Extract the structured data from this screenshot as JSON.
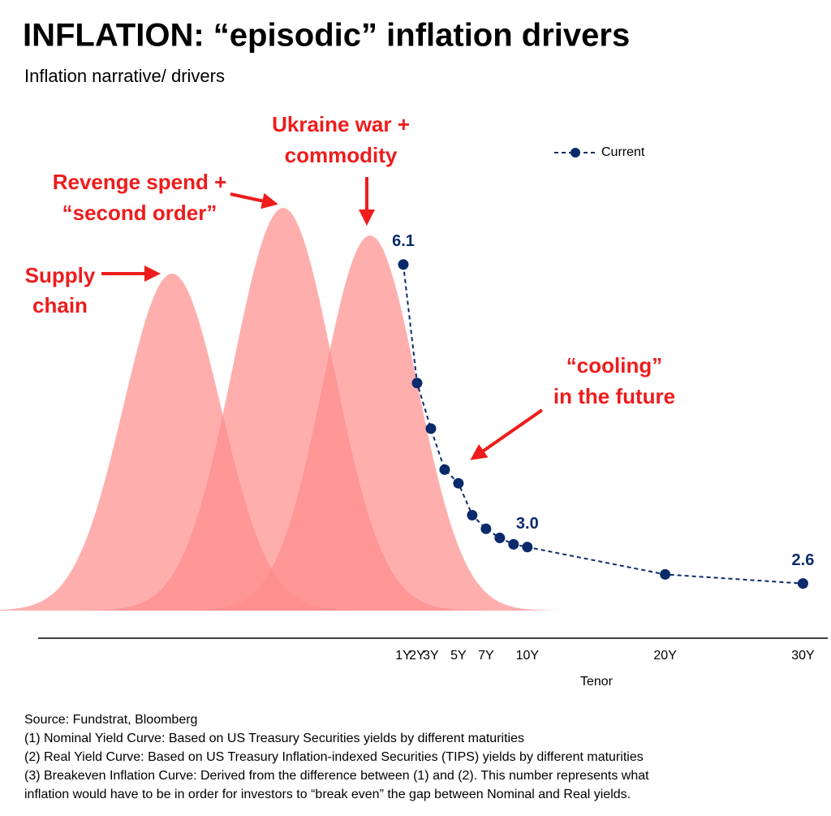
{
  "chart_data": {
    "type": "line",
    "title": "INFLATION: “episodic” inflation drivers",
    "subtitle": "Inflation narrative/ drivers",
    "x_label": "Tenor",
    "x": [
      1,
      2,
      3,
      4,
      5,
      6,
      7,
      8,
      9,
      10,
      20,
      30
    ],
    "series": [
      {
        "name": "Current",
        "color": "#0b2a6b",
        "values": [
          6.1,
          4.8,
          4.3,
          3.85,
          3.7,
          3.35,
          3.2,
          3.1,
          3.03,
          3.0,
          2.7,
          2.6
        ],
        "value_labels": [
          "6.1",
          null,
          null,
          null,
          null,
          null,
          null,
          null,
          null,
          "3.0",
          null,
          "2.6"
        ]
      }
    ],
    "xlim": [
      -25.5,
      31.8
    ],
    "xticks": [
      {
        "value": 1,
        "label": "1Y"
      },
      {
        "value": 2,
        "label": "2Y"
      },
      {
        "value": 3,
        "label": "3Y"
      },
      {
        "value": 5,
        "label": "5Y"
      },
      {
        "value": 7,
        "label": "7Y"
      },
      {
        "value": 10,
        "label": "10Y"
      },
      {
        "value": 20,
        "label": "20Y"
      },
      {
        "value": 30,
        "label": "30Y"
      }
    ],
    "ylim": [
      2.0,
      7.8
    ],
    "legend": "top-right",
    "annotations": [
      [
        "Supply",
        "chain"
      ],
      [
        "Revenge spend +",
        "“second order”"
      ],
      [
        "Ukraine war +",
        "commodity"
      ],
      [
        "“cooling”",
        "in the future"
      ]
    ],
    "notes": [
      "Source: Fundstrat, Bloomberg",
      "(1) Nominal Yield Curve: Based on US Treasury Securities yields by different maturities",
      "(2) Real Yield Curve: Based on US Treasury Inflation-indexed Securities (TIPS) yields by different maturities",
      "(3) Breakeven Inflation Curve: Derived from the difference between (1) and (2). This number represents what",
      "inflation would have to be in order for investors to “break even” the gap between Nominal and Real yields."
    ]
  }
}
